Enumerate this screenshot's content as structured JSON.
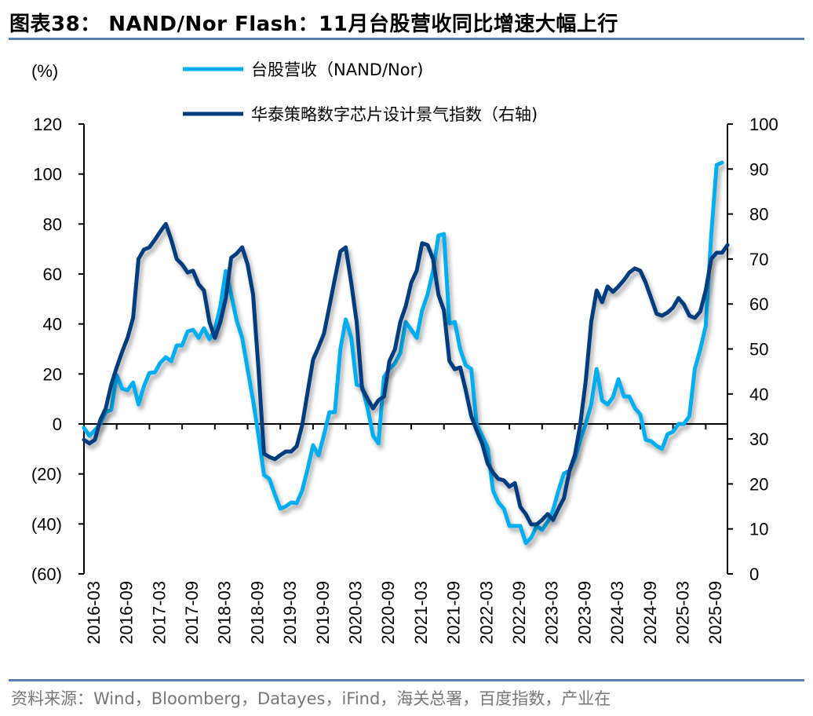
{
  "title": "图表38： NAND/Nor Flash：11月台股营收同比增速大幅上行",
  "source": "资料来源：Wind，Bloomberg，Datayes，iFind，海关总署，百度指数，产业在",
  "chart_data": {
    "type": "line",
    "title": "NAND/Nor Flash：11月台股营收同比增速大幅上行",
    "ylabel": "(%)",
    "ylim": [
      -60,
      120
    ],
    "y2lim": [
      0,
      100
    ],
    "yticks": [
      "120",
      "100",
      "80",
      "60",
      "40",
      "20",
      "0",
      "(20)",
      "(40)",
      "(60)"
    ],
    "y2ticks": [
      "100",
      "90",
      "80",
      "70",
      "60",
      "50",
      "40",
      "30",
      "20",
      "10",
      "0"
    ],
    "x_start": "2016-01",
    "xtick_labels": [
      "2016-03",
      "2016-09",
      "2017-03",
      "2017-09",
      "2018-03",
      "2018-09",
      "2019-03",
      "2019-09",
      "2020-03",
      "2020-09",
      "2021-03",
      "2021-09",
      "2022-03",
      "2022-09",
      "2023-03",
      "2023-09",
      "2024-03",
      "2024-09",
      "2025-03",
      "2025-09"
    ],
    "legend_position": "top",
    "series": [
      {
        "name": "台股营收（NAND/Nor)",
        "axis": "left",
        "color": "#00AEEF",
        "values": [
          -1.6,
          -4.7,
          -2.5,
          0,
          4.7,
          5.7,
          19.5,
          14.1,
          13.5,
          16.6,
          7.8,
          15.1,
          20.4,
          20.7,
          24.5,
          26.7,
          25.1,
          31.4,
          31.4,
          37.0,
          37.7,
          34.5,
          38.3,
          33.9,
          37.7,
          47.1,
          61.2,
          51.8,
          41.4,
          34.5,
          22.0,
          9.4,
          -4.7,
          -20.4,
          -22.0,
          -28.3,
          -33.9,
          -33.0,
          -31.4,
          -31.7,
          -26.7,
          -18.2,
          -8.5,
          -12.6,
          -4.4,
          4.7,
          4.7,
          29.8,
          41.8,
          34.5,
          15.7,
          15.1,
          6.3,
          -4.7,
          -7.8,
          18.8,
          22.0,
          24.2,
          28.3,
          40.8,
          37.7,
          34.5,
          45.5,
          51.8,
          61.2,
          75.4,
          76.0,
          40.2,
          40.8,
          29.8,
          23.5,
          22.0,
          0,
          -4.7,
          -9.4,
          -26.7,
          -31.4,
          -33.9,
          -40.8,
          -40.8,
          -40.8,
          -47.7,
          -45.5,
          -40.8,
          -42.4,
          -39.2,
          -34.5,
          -26.7,
          -19.8,
          -18.8,
          -14.1,
          -6.3,
          0,
          7.8,
          22.0,
          9.4,
          7.8,
          10.7,
          17.9,
          11.0,
          11.0,
          6.3,
          3.8,
          -6.3,
          -6.9,
          -8.8,
          -10.0,
          -4.1,
          -3.1,
          0,
          0,
          3.1,
          22.0,
          29.8,
          39.2,
          75.4,
          103.6,
          104.6
        ]
      },
      {
        "name": "华泰策略数字芯片设计景气指数（右轴)",
        "axis": "right",
        "color": "#003C7E",
        "values": [
          29.8,
          29.0,
          29.8,
          34.2,
          36.8,
          42.1,
          45.9,
          49.4,
          52.5,
          56.9,
          70.0,
          72.1,
          72.6,
          74.3,
          76.1,
          77.8,
          74.3,
          70.0,
          68.8,
          67.0,
          67.4,
          64.4,
          63.0,
          56.0,
          52.5,
          56.0,
          61.3,
          70.3,
          71.2,
          72.6,
          68.8,
          62.1,
          45.5,
          26.7,
          26.0,
          25.5,
          26.4,
          27.2,
          27.2,
          28.4,
          33.0,
          40.3,
          47.6,
          50.4,
          53.4,
          59.5,
          65.6,
          71.7,
          72.6,
          64.7,
          56.0,
          41.2,
          38.9,
          36.8,
          38.6,
          39.4,
          47.3,
          49.9,
          56.0,
          59.5,
          64.7,
          67.4,
          73.5,
          73.1,
          70.0,
          62.0,
          58.6,
          47.3,
          45.5,
          45.9,
          40.8,
          35.1,
          31.9,
          29.0,
          24.6,
          22.5,
          21.1,
          20.8,
          19.4,
          20.2,
          14.9,
          13.3,
          11.0,
          11.0,
          12.0,
          13.3,
          12.0,
          14.5,
          16.8,
          22.9,
          26.4,
          33.3,
          42.9,
          56.0,
          63.0,
          60.4,
          63.9,
          62.7,
          63.9,
          65.3,
          67.0,
          67.9,
          67.4,
          64.7,
          61.3,
          57.8,
          57.4,
          58.1,
          59.2,
          61.3,
          59.9,
          57.4,
          56.9,
          58.3,
          63.0,
          70.0,
          71.4,
          71.4,
          73.1
        ]
      }
    ]
  }
}
